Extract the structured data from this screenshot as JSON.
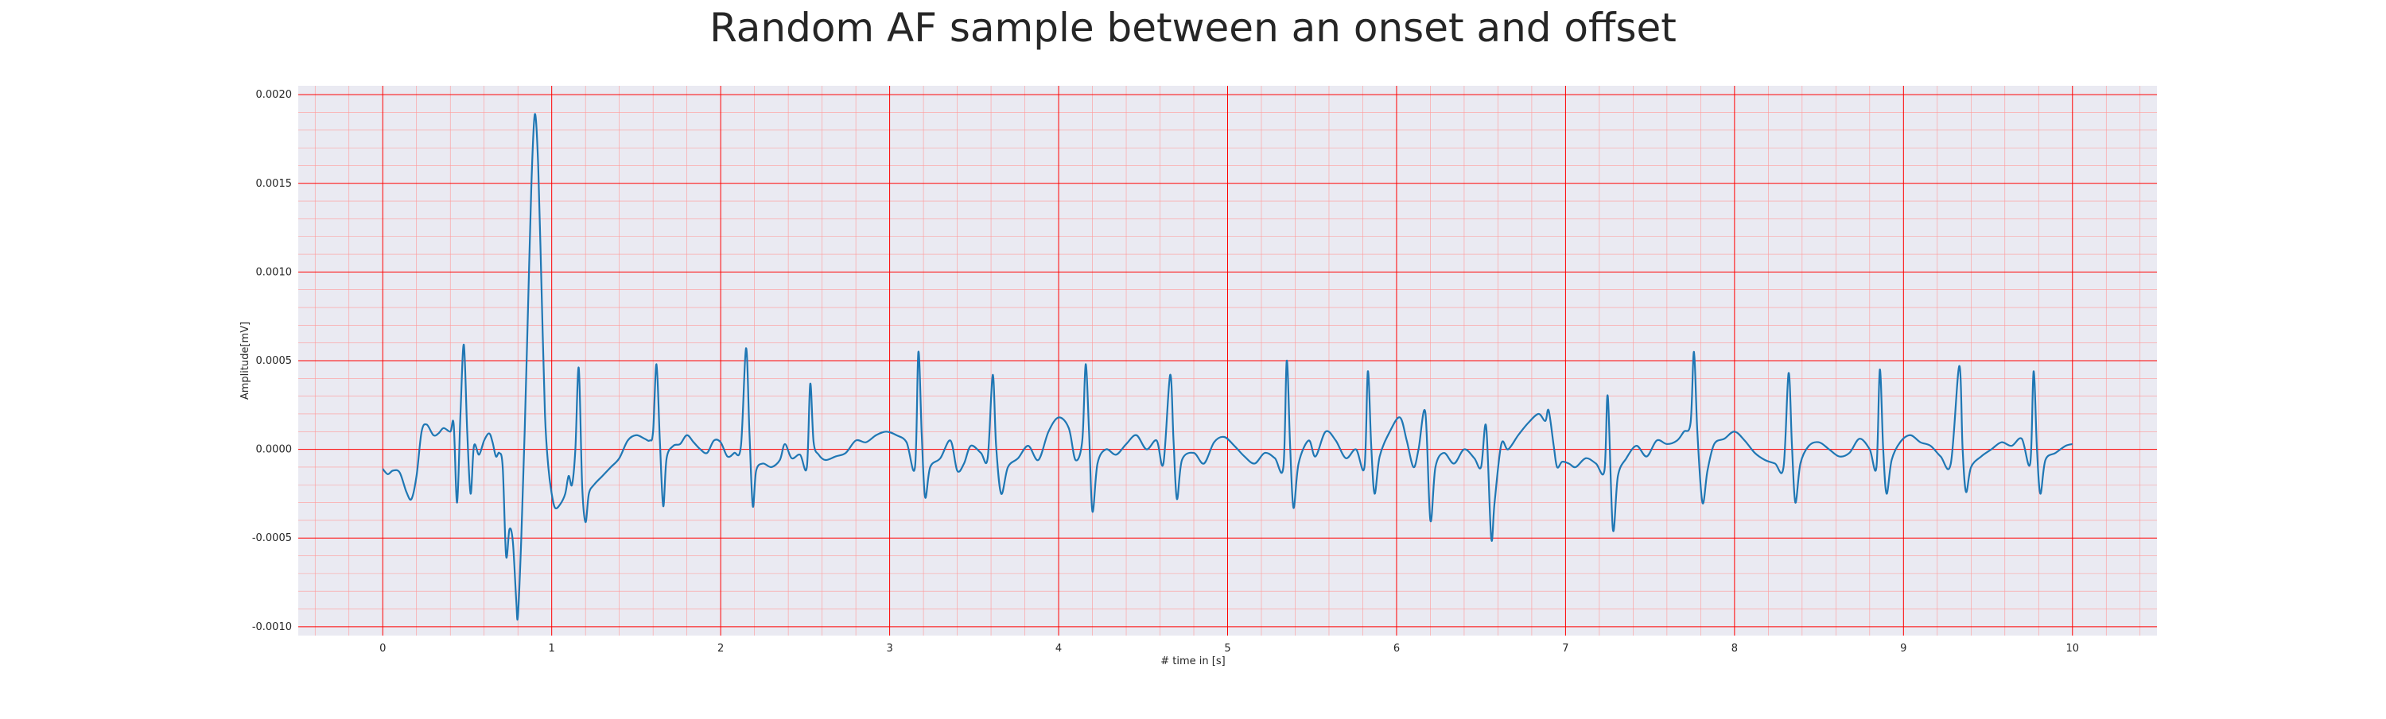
{
  "chart_data": {
    "type": "line",
    "title": "Random AF sample between an onset and offset",
    "xlabel": "# time in [s]",
    "ylabel": "Amplitude[mV]",
    "xlim": [
      -0.5,
      10.5
    ],
    "ylim": [
      -0.00105,
      0.00205
    ],
    "x_ticks": [
      0,
      1,
      2,
      3,
      4,
      5,
      6,
      7,
      8,
      9,
      10
    ],
    "x_tick_labels": [
      "0",
      "1",
      "2",
      "3",
      "4",
      "5",
      "6",
      "7",
      "8",
      "9",
      "10"
    ],
    "y_ticks": [
      -0.001,
      -0.0005,
      0.0,
      0.0005,
      0.001,
      0.0015,
      0.002
    ],
    "y_tick_labels": [
      "-0.0010",
      "-0.0005",
      "0.0000",
      "0.0005",
      "0.0010",
      "0.0015",
      "0.0020"
    ],
    "grid": true,
    "minor_grid": true,
    "legend": "none",
    "colors": {
      "line": "#1f77b4",
      "plot_background": "#eaeaf2",
      "major_grid": "#ff0000",
      "minor_grid": "#ff9999"
    },
    "series": [
      {
        "points": [
          [
            0.0,
            -0.00011
          ],
          [
            0.03,
            -0.00014
          ],
          [
            0.06,
            -0.00012
          ],
          [
            0.1,
            -0.00013
          ],
          [
            0.14,
            -0.00024
          ],
          [
            0.17,
            -0.00028
          ],
          [
            0.2,
            -0.00015
          ],
          [
            0.23,
            0.0001
          ],
          [
            0.26,
            0.00014
          ],
          [
            0.3,
            8e-05
          ],
          [
            0.33,
            9e-05
          ],
          [
            0.36,
            0.00012
          ],
          [
            0.4,
            0.0001
          ],
          [
            0.42,
            0.00014
          ],
          [
            0.44,
            -0.0003
          ],
          [
            0.46,
            0.0002
          ],
          [
            0.48,
            0.00059
          ],
          [
            0.5,
            0.0001
          ],
          [
            0.52,
            -0.00025
          ],
          [
            0.54,
            2e-05
          ],
          [
            0.57,
            -3e-05
          ],
          [
            0.6,
            5e-05
          ],
          [
            0.63,
            9e-05
          ],
          [
            0.65,
            4e-05
          ],
          [
            0.67,
            -4e-05
          ],
          [
            0.69,
            -2e-05
          ],
          [
            0.71,
            -0.0001
          ],
          [
            0.73,
            -0.0006
          ],
          [
            0.75,
            -0.00045
          ],
          [
            0.77,
            -0.00052
          ],
          [
            0.79,
            -0.00085
          ],
          [
            0.8,
            -0.00094
          ],
          [
            0.82,
            -0.0005
          ],
          [
            0.84,
            0.0001
          ],
          [
            0.86,
            0.0008
          ],
          [
            0.88,
            0.0015
          ],
          [
            0.9,
            0.00189
          ],
          [
            0.92,
            0.0016
          ],
          [
            0.94,
            0.0009
          ],
          [
            0.96,
            0.0002
          ],
          [
            0.98,
            -0.0001
          ],
          [
            1.0,
            -0.00025
          ],
          [
            1.02,
            -0.00033
          ],
          [
            1.05,
            -0.00031
          ],
          [
            1.08,
            -0.00025
          ],
          [
            1.1,
            -0.00015
          ],
          [
            1.12,
            -0.0002
          ],
          [
            1.14,
            0.0
          ],
          [
            1.16,
            0.00046
          ],
          [
            1.18,
            -0.0002
          ],
          [
            1.2,
            -0.00041
          ],
          [
            1.22,
            -0.00025
          ],
          [
            1.25,
            -0.0002
          ],
          [
            1.3,
            -0.00015
          ],
          [
            1.35,
            -0.0001
          ],
          [
            1.4,
            -5e-05
          ],
          [
            1.45,
            5e-05
          ],
          [
            1.5,
            8e-05
          ],
          [
            1.55,
            6e-05
          ],
          [
            1.58,
            5e-05
          ],
          [
            1.6,
            0.0001
          ],
          [
            1.62,
            0.00048
          ],
          [
            1.64,
            5e-05
          ],
          [
            1.66,
            -0.00032
          ],
          [
            1.68,
            -5e-05
          ],
          [
            1.72,
            2e-05
          ],
          [
            1.76,
            3e-05
          ],
          [
            1.8,
            8e-05
          ],
          [
            1.84,
            4e-05
          ],
          [
            1.88,
            0.0
          ],
          [
            1.92,
            -2e-05
          ],
          [
            1.96,
            5e-05
          ],
          [
            2.0,
            4e-05
          ],
          [
            2.04,
            -4e-05
          ],
          [
            2.08,
            -2e-05
          ],
          [
            2.12,
            2e-05
          ],
          [
            2.15,
            0.00057
          ],
          [
            2.17,
            0.0001
          ],
          [
            2.19,
            -0.00032
          ],
          [
            2.21,
            -0.00012
          ],
          [
            2.25,
            -8e-05
          ],
          [
            2.3,
            -0.0001
          ],
          [
            2.35,
            -6e-05
          ],
          [
            2.38,
            3e-05
          ],
          [
            2.42,
            -5e-05
          ],
          [
            2.47,
            -3e-05
          ],
          [
            2.51,
            -0.0001
          ],
          [
            2.53,
            0.00037
          ],
          [
            2.55,
            4e-05
          ],
          [
            2.58,
            -3e-05
          ],
          [
            2.62,
            -6e-05
          ],
          [
            2.68,
            -4e-05
          ],
          [
            2.74,
            -2e-05
          ],
          [
            2.8,
            5e-05
          ],
          [
            2.86,
            4e-05
          ],
          [
            2.92,
            8e-05
          ],
          [
            2.98,
            0.0001
          ],
          [
            3.04,
            8e-05
          ],
          [
            3.1,
            4e-05
          ],
          [
            3.15,
            -0.0001
          ],
          [
            3.17,
            0.00055
          ],
          [
            3.19,
            8e-05
          ],
          [
            3.21,
            -0.00027
          ],
          [
            3.24,
            -0.0001
          ],
          [
            3.3,
            -5e-05
          ],
          [
            3.36,
            5e-05
          ],
          [
            3.4,
            -0.00012
          ],
          [
            3.44,
            -8e-05
          ],
          [
            3.48,
            2e-05
          ],
          [
            3.54,
            -2e-05
          ],
          [
            3.58,
            -5e-05
          ],
          [
            3.61,
            0.00042
          ],
          [
            3.63,
            2e-05
          ],
          [
            3.66,
            -0.00025
          ],
          [
            3.7,
            -0.0001
          ],
          [
            3.76,
            -5e-05
          ],
          [
            3.82,
            2e-05
          ],
          [
            3.88,
            -6e-05
          ],
          [
            3.94,
            0.0001
          ],
          [
            4.0,
            0.00018
          ],
          [
            4.06,
            0.00012
          ],
          [
            4.1,
            -6e-05
          ],
          [
            4.14,
            5e-05
          ],
          [
            4.16,
            0.00048
          ],
          [
            4.18,
            0.0001
          ],
          [
            4.2,
            -0.00035
          ],
          [
            4.23,
            -8e-05
          ],
          [
            4.28,
            0.0
          ],
          [
            4.34,
            -3e-05
          ],
          [
            4.4,
            3e-05
          ],
          [
            4.46,
            8e-05
          ],
          [
            4.52,
            0.0
          ],
          [
            4.58,
            5e-05
          ],
          [
            4.62,
            -8e-05
          ],
          [
            4.66,
            0.00042
          ],
          [
            4.68,
            5e-05
          ],
          [
            4.7,
            -0.00028
          ],
          [
            4.73,
            -6e-05
          ],
          [
            4.8,
            -2e-05
          ],
          [
            4.86,
            -8e-05
          ],
          [
            4.92,
            4e-05
          ],
          [
            4.98,
            7e-05
          ],
          [
            5.04,
            2e-05
          ],
          [
            5.1,
            -4e-05
          ],
          [
            5.16,
            -8e-05
          ],
          [
            5.22,
            -2e-05
          ],
          [
            5.28,
            -5e-05
          ],
          [
            5.33,
            -0.0001
          ],
          [
            5.35,
            0.0005
          ],
          [
            5.37,
            2e-05
          ],
          [
            5.39,
            -0.00033
          ],
          [
            5.42,
            -8e-05
          ],
          [
            5.48,
            5e-05
          ],
          [
            5.52,
            -4e-05
          ],
          [
            5.58,
            0.0001
          ],
          [
            5.64,
            5e-05
          ],
          [
            5.7,
            -5e-05
          ],
          [
            5.76,
            0.0
          ],
          [
            5.81,
            -0.0001
          ],
          [
            5.83,
            0.00044
          ],
          [
            5.85,
            2e-05
          ],
          [
            5.87,
            -0.00025
          ],
          [
            5.9,
            -4e-05
          ],
          [
            5.96,
            0.0001
          ],
          [
            6.02,
            0.00018
          ],
          [
            6.06,
            5e-05
          ],
          [
            6.1,
            -0.0001
          ],
          [
            6.13,
            0.0
          ],
          [
            6.17,
            0.00021
          ],
          [
            6.2,
            -0.0004
          ],
          [
            6.23,
            -0.0001
          ],
          [
            6.28,
            -2e-05
          ],
          [
            6.34,
            -8e-05
          ],
          [
            6.4,
            0.0
          ],
          [
            6.46,
            -5e-05
          ],
          [
            6.5,
            -0.0001
          ],
          [
            6.53,
            0.00013
          ],
          [
            6.56,
            -0.0005
          ],
          [
            6.58,
            -0.0003
          ],
          [
            6.62,
            3e-05
          ],
          [
            6.66,
            0.0
          ],
          [
            6.72,
            8e-05
          ],
          [
            6.78,
            0.00015
          ],
          [
            6.84,
            0.0002
          ],
          [
            6.88,
            0.00016
          ],
          [
            6.9,
            0.00022
          ],
          [
            6.93,
            2e-05
          ],
          [
            6.95,
            -0.0001
          ],
          [
            6.98,
            -7e-05
          ],
          [
            7.02,
            -8e-05
          ],
          [
            7.06,
            -0.0001
          ],
          [
            7.12,
            -5e-05
          ],
          [
            7.18,
            -8e-05
          ],
          [
            7.23,
            -0.00012
          ],
          [
            7.25,
            0.0003
          ],
          [
            7.28,
            -0.00045
          ],
          [
            7.31,
            -0.00015
          ],
          [
            7.36,
            -5e-05
          ],
          [
            7.42,
            2e-05
          ],
          [
            7.48,
            -4e-05
          ],
          [
            7.54,
            5e-05
          ],
          [
            7.6,
            3e-05
          ],
          [
            7.66,
            5e-05
          ],
          [
            7.7,
            0.0001
          ],
          [
            7.74,
            0.00015
          ],
          [
            7.76,
            0.00055
          ],
          [
            7.78,
            0.0001
          ],
          [
            7.81,
            -0.0003
          ],
          [
            7.84,
            -0.00012
          ],
          [
            7.88,
            3e-05
          ],
          [
            7.94,
            6e-05
          ],
          [
            8.0,
            0.0001
          ],
          [
            8.06,
            5e-05
          ],
          [
            8.12,
            -2e-05
          ],
          [
            8.18,
            -6e-05
          ],
          [
            8.24,
            -8e-05
          ],
          [
            8.29,
            -0.0001
          ],
          [
            8.32,
            0.00043
          ],
          [
            8.34,
            2e-05
          ],
          [
            8.36,
            -0.0003
          ],
          [
            8.39,
            -8e-05
          ],
          [
            8.44,
            2e-05
          ],
          [
            8.5,
            4e-05
          ],
          [
            8.56,
            0.0
          ],
          [
            8.62,
            -4e-05
          ],
          [
            8.68,
            -2e-05
          ],
          [
            8.74,
            6e-05
          ],
          [
            8.8,
            0.0
          ],
          [
            8.84,
            -0.0001
          ],
          [
            8.86,
            0.00045
          ],
          [
            8.88,
            0.0
          ],
          [
            8.9,
            -0.00025
          ],
          [
            8.93,
            -6e-05
          ],
          [
            8.98,
            4e-05
          ],
          [
            9.04,
            8e-05
          ],
          [
            9.1,
            4e-05
          ],
          [
            9.16,
            2e-05
          ],
          [
            9.22,
            -4e-05
          ],
          [
            9.28,
            -8e-05
          ],
          [
            9.33,
            0.00047
          ],
          [
            9.35,
            0.0
          ],
          [
            9.37,
            -0.00024
          ],
          [
            9.4,
            -0.0001
          ],
          [
            9.46,
            -4e-05
          ],
          [
            9.52,
            0.0
          ],
          [
            9.58,
            4e-05
          ],
          [
            9.64,
            2e-05
          ],
          [
            9.7,
            6e-05
          ],
          [
            9.75,
            -8e-05
          ],
          [
            9.77,
            0.00044
          ],
          [
            9.79,
            0.0
          ],
          [
            9.81,
            -0.00025
          ],
          [
            9.84,
            -6e-05
          ],
          [
            9.9,
            -2e-05
          ],
          [
            9.96,
            2e-05
          ],
          [
            10.0,
            3e-05
          ]
        ]
      }
    ]
  }
}
